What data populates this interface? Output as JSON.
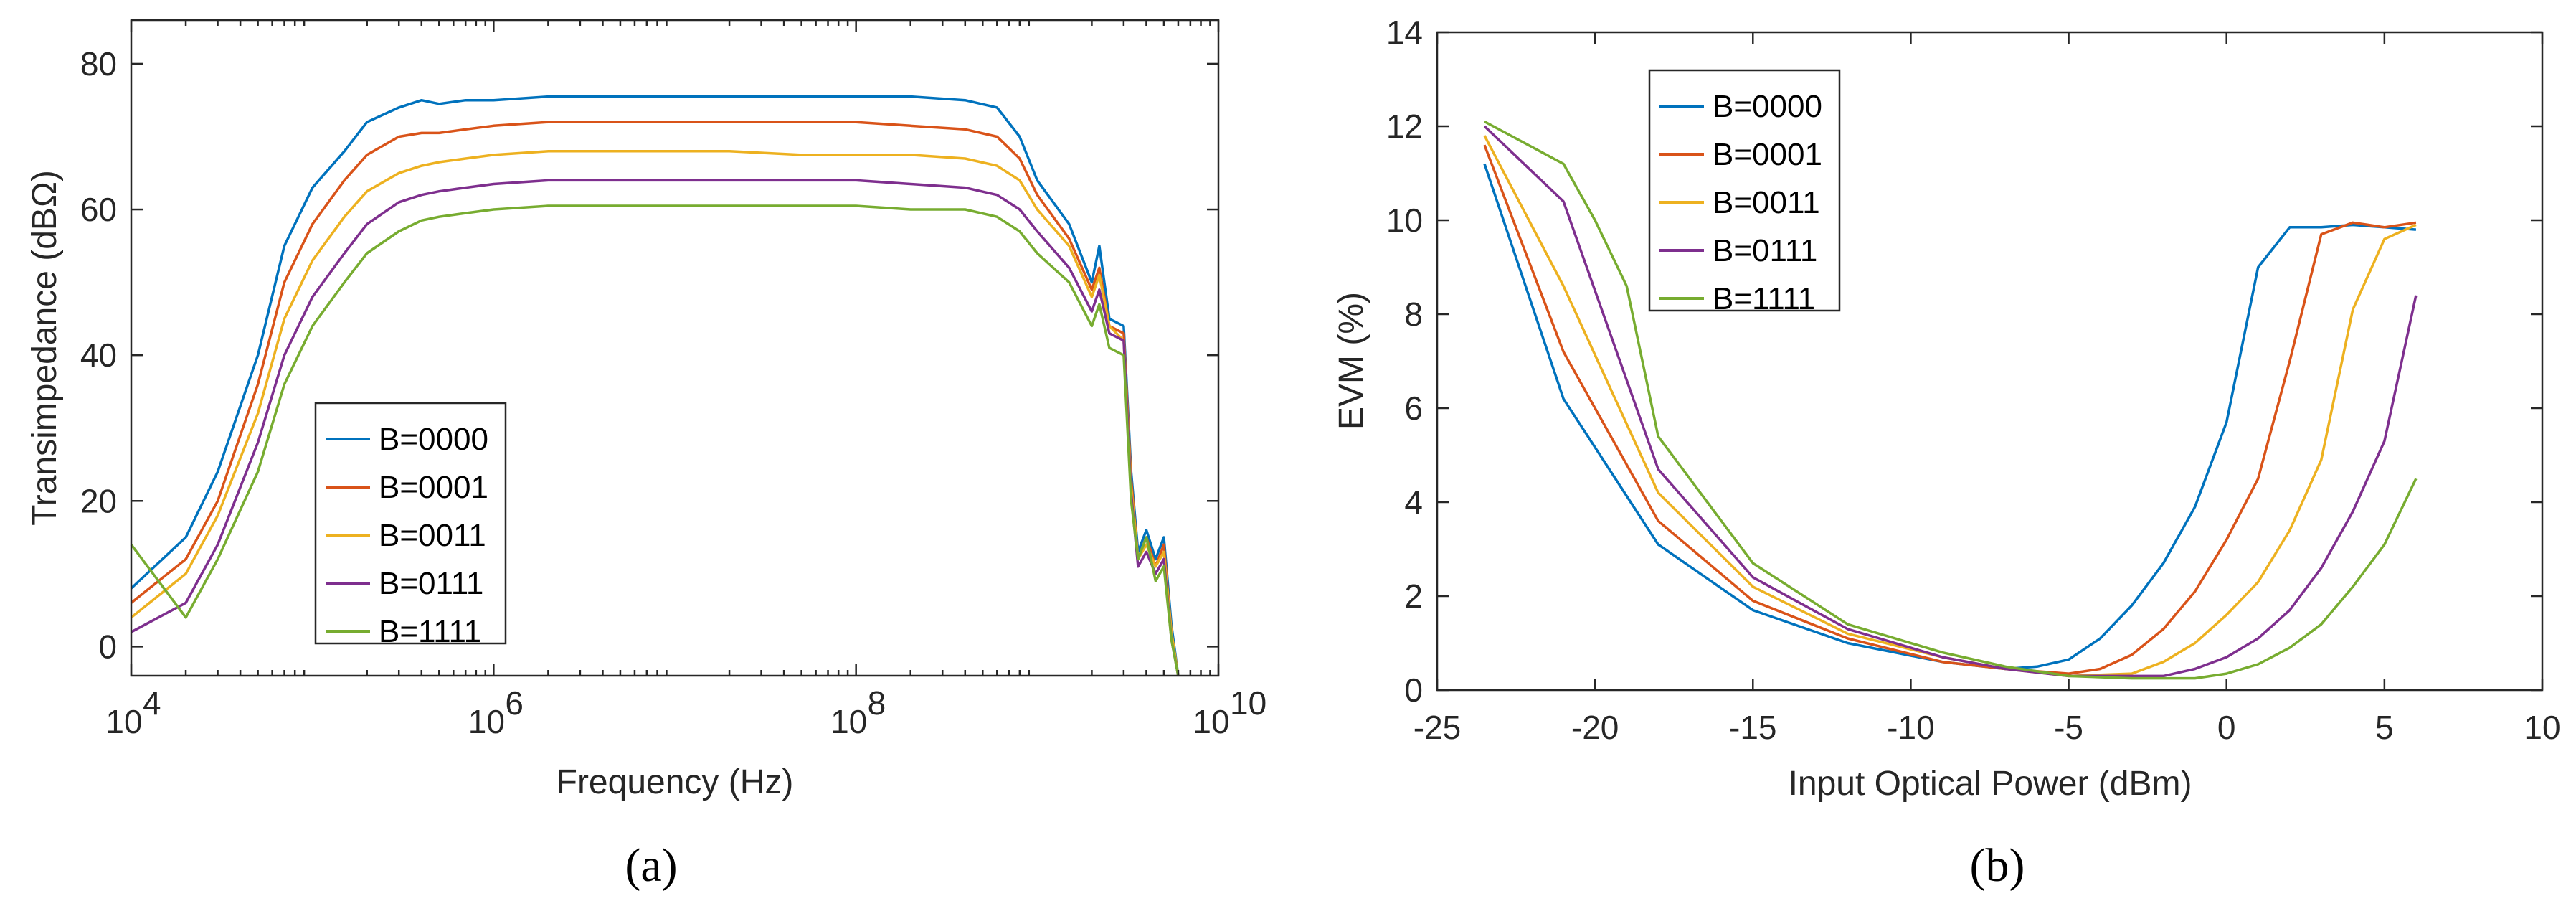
{
  "chart_data": [
    {
      "panel": "a",
      "panel_label": "(a)",
      "type": "line",
      "xscale": "log",
      "xlabel": "Frequency (Hz)",
      "ylabel": "Transimpedance (dBΩ)",
      "xlim": [
        10000,
        10000000000
      ],
      "ylim": [
        -4,
        86
      ],
      "xtick_labels": [
        {
          "value": 10000,
          "base": "10",
          "exp": "4"
        },
        {
          "value": 1000000,
          "base": "10",
          "exp": "6"
        },
        {
          "value": 100000000,
          "base": "10",
          "exp": "8"
        },
        {
          "value": 10000000000,
          "base": "10",
          "exp": "10"
        }
      ],
      "yticks": [
        0,
        20,
        40,
        60,
        80
      ],
      "legend_position": "center-left",
      "series": [
        {
          "name": "B=0000",
          "color": "#0072BD",
          "x": [
            10000,
            20000,
            30000,
            50000,
            70000,
            100000,
            150000,
            200000,
            300000,
            400000,
            500000,
            700000,
            1000000,
            2000000,
            5000000,
            10000000,
            20000000,
            50000000,
            100000000,
            200000000,
            400000000,
            600000000,
            800000000,
            1000000000,
            1500000000,
            2000000000,
            2200000000,
            2500000000,
            3000000000,
            3300000000,
            3600000000,
            4000000000,
            4500000000,
            5000000000,
            5500000000,
            6000000000
          ],
          "y": [
            8,
            15,
            24,
            40,
            55,
            63,
            68,
            72,
            74,
            75,
            74.5,
            75,
            75,
            75.5,
            75.5,
            75.5,
            75.5,
            75.5,
            75.5,
            75.5,
            75,
            74,
            70,
            64,
            58,
            50,
            55,
            45,
            44,
            24,
            13,
            16,
            12,
            15,
            3,
            -4
          ]
        },
        {
          "name": "B=0001",
          "color": "#D95319",
          "x": [
            10000,
            20000,
            30000,
            50000,
            70000,
            100000,
            150000,
            200000,
            300000,
            400000,
            500000,
            700000,
            1000000,
            2000000,
            5000000,
            10000000,
            20000000,
            50000000,
            100000000,
            200000000,
            400000000,
            600000000,
            800000000,
            1000000000,
            1500000000,
            2000000000,
            2200000000,
            2500000000,
            3000000000,
            3300000000,
            3600000000,
            4000000000,
            4500000000,
            5000000000,
            5500000000,
            6000000000
          ],
          "y": [
            6,
            12,
            20,
            36,
            50,
            58,
            64,
            67.5,
            70,
            70.5,
            70.5,
            71,
            71.5,
            72,
            72,
            72,
            72,
            72,
            72,
            71.5,
            71,
            70,
            67,
            62,
            56,
            49,
            52,
            44,
            43,
            23,
            12,
            15,
            11,
            14,
            2,
            -4
          ]
        },
        {
          "name": "B=0011",
          "color": "#EDB120",
          "x": [
            10000,
            20000,
            30000,
            50000,
            70000,
            100000,
            150000,
            200000,
            300000,
            400000,
            500000,
            700000,
            1000000,
            2000000,
            5000000,
            10000000,
            20000000,
            50000000,
            100000000,
            200000000,
            400000000,
            600000000,
            800000000,
            1000000000,
            1500000000,
            2000000000,
            2200000000,
            2500000000,
            3000000000,
            3300000000,
            3600000000,
            4000000000,
            4500000000,
            5000000000,
            5500000000,
            6000000000
          ],
          "y": [
            4,
            10,
            18,
            32,
            45,
            53,
            59,
            62.5,
            65,
            66,
            66.5,
            67,
            67.5,
            68,
            68,
            68,
            68,
            67.5,
            67.5,
            67.5,
            67,
            66,
            64,
            60,
            55,
            48,
            51,
            44,
            42,
            22,
            12,
            14,
            11,
            13,
            2,
            -4
          ]
        },
        {
          "name": "B=0111",
          "color": "#7E2F8E",
          "x": [
            10000,
            20000,
            30000,
            50000,
            70000,
            100000,
            150000,
            200000,
            300000,
            400000,
            500000,
            700000,
            1000000,
            2000000,
            5000000,
            10000000,
            20000000,
            50000000,
            100000000,
            200000000,
            400000000,
            600000000,
            800000000,
            1000000000,
            1500000000,
            2000000000,
            2200000000,
            2500000000,
            3000000000,
            3300000000,
            3600000000,
            4000000000,
            4500000000,
            5000000000,
            5500000000,
            6000000000
          ],
          "y": [
            2,
            6,
            14,
            28,
            40,
            48,
            54,
            58,
            61,
            62,
            62.5,
            63,
            63.5,
            64,
            64,
            64,
            64,
            64,
            64,
            63.5,
            63,
            62,
            60,
            57,
            52,
            46,
            49,
            43,
            42,
            21,
            11,
            13,
            10,
            12,
            1,
            -4
          ]
        },
        {
          "name": "B=1111",
          "color": "#77AC30",
          "x": [
            10000,
            20000,
            30000,
            50000,
            70000,
            100000,
            150000,
            200000,
            300000,
            400000,
            500000,
            700000,
            1000000,
            2000000,
            5000000,
            10000000,
            20000000,
            50000000,
            100000000,
            200000000,
            400000000,
            600000000,
            800000000,
            1000000000,
            1500000000,
            2000000000,
            2200000000,
            2500000000,
            3000000000,
            3300000000,
            3600000000,
            4000000000,
            4500000000,
            5000000000,
            5500000000,
            6000000000
          ],
          "y": [
            14,
            4,
            12,
            24,
            36,
            44,
            50,
            54,
            57,
            58.5,
            59,
            59.5,
            60,
            60.5,
            60.5,
            60.5,
            60.5,
            60.5,
            60.5,
            60,
            60,
            59,
            57,
            54,
            50,
            44,
            47,
            41,
            40,
            20,
            12,
            15,
            9,
            11,
            1,
            -4
          ]
        }
      ]
    },
    {
      "panel": "b",
      "panel_label": "(b)",
      "type": "line",
      "xlabel": "Input Optical Power (dBm)",
      "ylabel": "EVM (%)",
      "xlim": [
        -25,
        10
      ],
      "ylim": [
        0,
        14
      ],
      "xticks": [
        -25,
        -20,
        -15,
        -10,
        -5,
        0,
        5,
        10
      ],
      "yticks": [
        0,
        2,
        4,
        6,
        8,
        10,
        12,
        14
      ],
      "legend_position": "top-left",
      "series": [
        {
          "name": "B=0000",
          "color": "#0072BD",
          "x": [
            -23.5,
            -21,
            -18,
            -15,
            -12,
            -9,
            -7,
            -6,
            -5,
            -4,
            -3,
            -2,
            -1,
            0,
            1,
            2,
            3,
            4,
            5,
            6
          ],
          "y": [
            11.2,
            6.2,
            3.1,
            1.7,
            1.0,
            0.6,
            0.45,
            0.5,
            0.65,
            1.1,
            1.8,
            2.7,
            3.9,
            5.7,
            9.0,
            9.85,
            9.85,
            9.9,
            9.85,
            9.8
          ]
        },
        {
          "name": "B=0001",
          "color": "#D95319",
          "x": [
            -23.5,
            -21,
            -18,
            -15,
            -12,
            -9,
            -7,
            -5,
            -4,
            -3,
            -2,
            -1,
            0,
            1,
            2,
            3,
            4,
            5,
            6
          ],
          "y": [
            11.6,
            7.2,
            3.6,
            1.9,
            1.1,
            0.6,
            0.45,
            0.35,
            0.45,
            0.75,
            1.3,
            2.1,
            3.2,
            4.5,
            7.0,
            9.7,
            9.95,
            9.85,
            9.95
          ]
        },
        {
          "name": "B=0011",
          "color": "#EDB120",
          "x": [
            -23.5,
            -21,
            -18,
            -15,
            -12,
            -9,
            -7,
            -5,
            -3,
            -2,
            -1,
            0,
            1,
            2,
            3,
            4,
            5,
            6
          ],
          "y": [
            11.8,
            8.6,
            4.2,
            2.2,
            1.2,
            0.7,
            0.45,
            0.3,
            0.35,
            0.6,
            1.0,
            1.6,
            2.3,
            3.4,
            4.9,
            8.1,
            9.6,
            9.9
          ]
        },
        {
          "name": "B=0111",
          "color": "#7E2F8E",
          "x": [
            -23.5,
            -21,
            -18,
            -15,
            -12,
            -9,
            -7,
            -5,
            -2,
            -1,
            0,
            1,
            2,
            3,
            4,
            5,
            6
          ],
          "y": [
            12.0,
            10.4,
            4.7,
            2.4,
            1.3,
            0.7,
            0.45,
            0.3,
            0.3,
            0.45,
            0.7,
            1.1,
            1.7,
            2.6,
            3.8,
            5.3,
            8.4
          ]
        },
        {
          "name": "B=1111",
          "color": "#77AC30",
          "x": [
            -23.5,
            -21,
            -20,
            -19,
            -18,
            -15,
            -12,
            -9,
            -7,
            -5,
            -3,
            -1,
            0,
            1,
            2,
            3,
            4,
            5,
            6
          ],
          "y": [
            12.1,
            11.2,
            10.0,
            8.6,
            5.4,
            2.7,
            1.4,
            0.8,
            0.5,
            0.3,
            0.25,
            0.25,
            0.35,
            0.55,
            0.9,
            1.4,
            2.2,
            3.1,
            4.5
          ]
        }
      ]
    }
  ]
}
